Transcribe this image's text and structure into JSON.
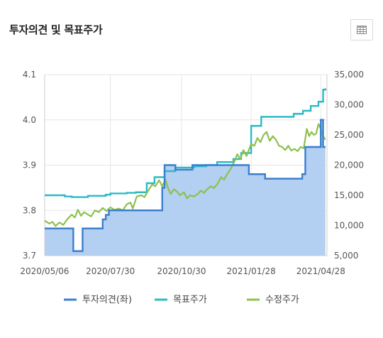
{
  "header": {
    "title": "투자의견 및 목표주가",
    "table_icon": "table-grid-icon"
  },
  "colors": {
    "opinion": "#3a7fcf",
    "opinion_fill": "#b3cff2",
    "target": "#2bbac4",
    "price": "#8dc04e",
    "grid": "#e6e6e6",
    "axis_text": "#555555"
  },
  "chart_data": {
    "type": "area",
    "title": "",
    "x_ticks": [
      "2020/05/06",
      "2020/07/30",
      "2020/10/30",
      "2021/01/28",
      "2021/04/28"
    ],
    "x_range": [
      "2020-05-06",
      "2021-05-06"
    ],
    "y_left": {
      "range": [
        3.7,
        4.1
      ],
      "ticks": [
        "3.7",
        "3.8",
        "3.9",
        "4.0",
        "4.1"
      ]
    },
    "y_right": {
      "range": [
        5000,
        35000
      ],
      "ticks": [
        "5,000",
        "10,000",
        "15,000",
        "20,000",
        "25,000",
        "30,000",
        "35,000"
      ]
    },
    "grid": true,
    "legend_position": "bottom",
    "series": [
      {
        "name": "투자의견(좌)",
        "type": "step-area",
        "axis": "left",
        "points": [
          [
            "2020-05-06",
            3.76
          ],
          [
            "2020-06-12",
            3.71
          ],
          [
            "2020-06-24",
            3.76
          ],
          [
            "2020-07-20",
            3.78
          ],
          [
            "2020-07-24",
            3.79
          ],
          [
            "2020-07-28",
            3.8
          ],
          [
            "2020-10-05",
            3.85
          ],
          [
            "2020-10-08",
            3.9
          ],
          [
            "2020-10-22",
            3.89
          ],
          [
            "2020-11-13",
            3.9
          ],
          [
            "2021-01-05",
            3.9
          ],
          [
            "2021-01-25",
            3.88
          ],
          [
            "2021-02-15",
            3.87
          ],
          [
            "2021-03-24",
            3.87
          ],
          [
            "2021-04-04",
            3.88
          ],
          [
            "2021-04-08",
            3.94
          ],
          [
            "2021-04-28",
            4.0
          ],
          [
            "2021-05-01",
            3.94
          ],
          [
            "2021-05-04",
            3.94
          ]
        ]
      },
      {
        "name": "목표주가",
        "type": "step-line",
        "axis": "right",
        "points": [
          [
            "2020-05-06",
            15000
          ],
          [
            "2020-06-01",
            14800
          ],
          [
            "2020-06-10",
            14700
          ],
          [
            "2020-07-01",
            14900
          ],
          [
            "2020-07-24",
            15100
          ],
          [
            "2020-07-30",
            15300
          ],
          [
            "2020-08-20",
            15400
          ],
          [
            "2020-09-01",
            15500
          ],
          [
            "2020-09-15",
            17000
          ],
          [
            "2020-09-25",
            18000
          ],
          [
            "2020-10-08",
            19000
          ],
          [
            "2020-10-22",
            19600
          ],
          [
            "2020-11-15",
            19800
          ],
          [
            "2020-12-01",
            20000
          ],
          [
            "2020-12-15",
            20500
          ],
          [
            "2021-01-05",
            21000
          ],
          [
            "2021-01-15",
            22000
          ],
          [
            "2021-01-28",
            26500
          ],
          [
            "2021-02-10",
            28000
          ],
          [
            "2021-03-24",
            28500
          ],
          [
            "2021-04-05",
            29000
          ],
          [
            "2021-04-15",
            29800
          ],
          [
            "2021-04-25",
            30500
          ],
          [
            "2021-05-01",
            32500
          ],
          [
            "2021-05-04",
            32700
          ]
        ]
      },
      {
        "name": "수정주가",
        "type": "line",
        "axis": "right",
        "points": [
          [
            "2020-05-06",
            10800
          ],
          [
            "2020-05-12",
            10300
          ],
          [
            "2020-05-16",
            10600
          ],
          [
            "2020-05-20",
            9900
          ],
          [
            "2020-05-25",
            10500
          ],
          [
            "2020-05-30",
            10100
          ],
          [
            "2020-06-04",
            11000
          ],
          [
            "2020-06-10",
            11800
          ],
          [
            "2020-06-14",
            11300
          ],
          [
            "2020-06-18",
            12600
          ],
          [
            "2020-06-22",
            11600
          ],
          [
            "2020-06-26",
            12200
          ],
          [
            "2020-07-01",
            11800
          ],
          [
            "2020-07-05",
            11500
          ],
          [
            "2020-07-10",
            12500
          ],
          [
            "2020-07-15",
            12200
          ],
          [
            "2020-07-20",
            12900
          ],
          [
            "2020-07-25",
            12400
          ],
          [
            "2020-07-30",
            13000
          ],
          [
            "2020-08-04",
            12600
          ],
          [
            "2020-08-10",
            12800
          ],
          [
            "2020-08-15",
            12500
          ],
          [
            "2020-08-20",
            13500
          ],
          [
            "2020-08-25",
            13800
          ],
          [
            "2020-08-28",
            12800
          ],
          [
            "2020-09-02",
            14800
          ],
          [
            "2020-09-08",
            15000
          ],
          [
            "2020-09-12",
            14700
          ],
          [
            "2020-09-18",
            16000
          ],
          [
            "2020-09-22",
            16800
          ],
          [
            "2020-09-26",
            16500
          ],
          [
            "2020-10-01",
            17500
          ],
          [
            "2020-10-05",
            16500
          ],
          [
            "2020-10-09",
            17600
          ],
          [
            "2020-10-13",
            16000
          ],
          [
            "2020-10-16",
            15200
          ],
          [
            "2020-10-20",
            16000
          ],
          [
            "2020-10-24",
            15600
          ],
          [
            "2020-10-28",
            15000
          ],
          [
            "2020-11-02",
            15500
          ],
          [
            "2020-11-06",
            14500
          ],
          [
            "2020-11-10",
            15000
          ],
          [
            "2020-11-15",
            14800
          ],
          [
            "2020-11-20",
            15200
          ],
          [
            "2020-11-24",
            15800
          ],
          [
            "2020-11-28",
            15400
          ],
          [
            "2020-12-02",
            16000
          ],
          [
            "2020-12-07",
            16500
          ],
          [
            "2020-12-11",
            16200
          ],
          [
            "2020-12-16",
            17000
          ],
          [
            "2020-12-20",
            18000
          ],
          [
            "2020-12-24",
            17600
          ],
          [
            "2020-12-28",
            18500
          ],
          [
            "2021-01-02",
            19500
          ],
          [
            "2021-01-06",
            20500
          ],
          [
            "2021-01-10",
            21800
          ],
          [
            "2021-01-14",
            21000
          ],
          [
            "2021-01-18",
            22500
          ],
          [
            "2021-01-22",
            21500
          ],
          [
            "2021-01-28",
            23500
          ],
          [
            "2021-02-01",
            23200
          ],
          [
            "2021-02-05",
            24500
          ],
          [
            "2021-02-09",
            23800
          ],
          [
            "2021-02-13",
            25000
          ],
          [
            "2021-02-17",
            25500
          ],
          [
            "2021-02-21",
            24000
          ],
          [
            "2021-02-25",
            24800
          ],
          [
            "2021-03-01",
            24200
          ],
          [
            "2021-03-05",
            23200
          ],
          [
            "2021-03-09",
            23000
          ],
          [
            "2021-03-13",
            22500
          ],
          [
            "2021-03-17",
            23200
          ],
          [
            "2021-03-21",
            22400
          ],
          [
            "2021-03-25",
            22700
          ],
          [
            "2021-03-29",
            22300
          ],
          [
            "2021-04-02",
            23000
          ],
          [
            "2021-04-06",
            22800
          ],
          [
            "2021-04-10",
            26000
          ],
          [
            "2021-04-13",
            24800
          ],
          [
            "2021-04-16",
            25500
          ],
          [
            "2021-04-19",
            25000
          ],
          [
            "2021-04-22",
            25200
          ],
          [
            "2021-04-25",
            26800
          ],
          [
            "2021-04-28",
            26000
          ],
          [
            "2021-05-01",
            24800
          ],
          [
            "2021-05-04",
            24200
          ]
        ]
      }
    ]
  }
}
